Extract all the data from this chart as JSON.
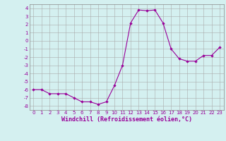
{
  "x": [
    0,
    1,
    2,
    3,
    4,
    5,
    6,
    7,
    8,
    9,
    10,
    11,
    12,
    13,
    14,
    15,
    16,
    17,
    18,
    19,
    20,
    21,
    22,
    23
  ],
  "y": [
    -6.0,
    -6.0,
    -6.5,
    -6.5,
    -6.5,
    -7.0,
    -7.5,
    -7.5,
    -7.8,
    -7.5,
    -5.5,
    -3.0,
    2.2,
    3.8,
    3.7,
    3.8,
    2.2,
    -1.0,
    -2.2,
    -2.5,
    -2.5,
    -1.8,
    -1.8,
    -0.8
  ],
  "line_color": "#990099",
  "marker": "D",
  "marker_size": 1.8,
  "bg_color": "#d4f0f0",
  "grid_color": "#aaaaaa",
  "xlabel": "Windchill (Refroidissement éolien,°C)",
  "xlim": [
    -0.5,
    23.5
  ],
  "ylim": [
    -8.5,
    4.5
  ],
  "yticks": [
    -8,
    -7,
    -6,
    -5,
    -4,
    -3,
    -2,
    -1,
    0,
    1,
    2,
    3,
    4
  ],
  "xticks": [
    0,
    1,
    2,
    3,
    4,
    5,
    6,
    7,
    8,
    9,
    10,
    11,
    12,
    13,
    14,
    15,
    16,
    17,
    18,
    19,
    20,
    21,
    22,
    23
  ],
  "tick_fontsize": 5.0,
  "label_fontsize": 6.0
}
